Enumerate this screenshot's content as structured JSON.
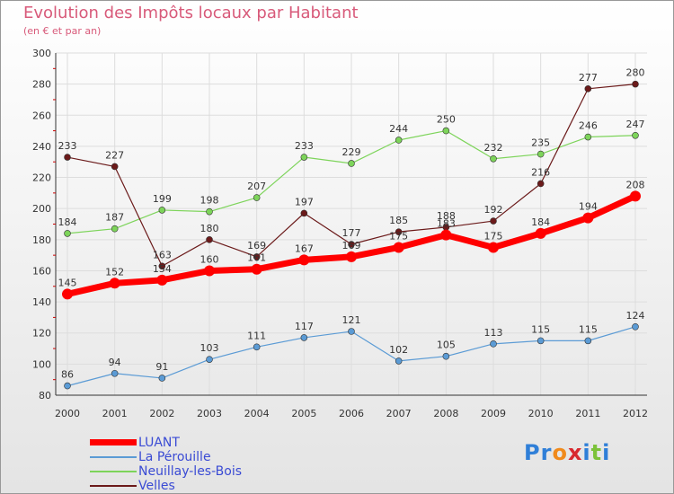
{
  "header": {
    "title": "Evolution des Impôts locaux par Habitant",
    "subtitle": "(en € et par an)"
  },
  "chart_data": {
    "type": "line",
    "title": "Evolution des Impôts locaux par Habitant",
    "subtitle": "(en € et par an)",
    "xlabel": "",
    "ylabel": "",
    "categories": [
      "2000",
      "2001",
      "2002",
      "2003",
      "2004",
      "2005",
      "2006",
      "2007",
      "2008",
      "2009",
      "2010",
      "2011",
      "2012"
    ],
    "ylim": [
      80,
      300
    ],
    "yticks": [
      80,
      100,
      120,
      140,
      160,
      180,
      200,
      220,
      240,
      260,
      280,
      300
    ],
    "grid": true,
    "legend_position": "bottom-left",
    "series": [
      {
        "name": "LUANT",
        "color": "#ff0000",
        "values": [
          145,
          152,
          154,
          160,
          161,
          167,
          169,
          175,
          183,
          175,
          184,
          194,
          208
        ]
      },
      {
        "name": "La Pérouille",
        "color": "#5b9bd5",
        "values": [
          86,
          94,
          91,
          103,
          111,
          117,
          121,
          102,
          105,
          113,
          115,
          115,
          124
        ]
      },
      {
        "name": "Neuillay-les-Bois",
        "color": "#7dd45a",
        "values": [
          184,
          187,
          199,
          198,
          207,
          233,
          229,
          244,
          250,
          232,
          235,
          246,
          247
        ]
      },
      {
        "name": "Velles",
        "color": "#6b1a1a",
        "values": [
          233,
          227,
          163,
          180,
          169,
          197,
          177,
          185,
          188,
          192,
          216,
          277,
          280
        ]
      }
    ]
  },
  "logo": {
    "letters": [
      "P",
      "r",
      "o",
      "x",
      "i",
      "t",
      "i"
    ],
    "colors": [
      "#2f7fd8",
      "#2f7fd8",
      "#f08a1c",
      "#d8282e",
      "#2f7fd8",
      "#7cc23a",
      "#2f7fd8"
    ]
  }
}
